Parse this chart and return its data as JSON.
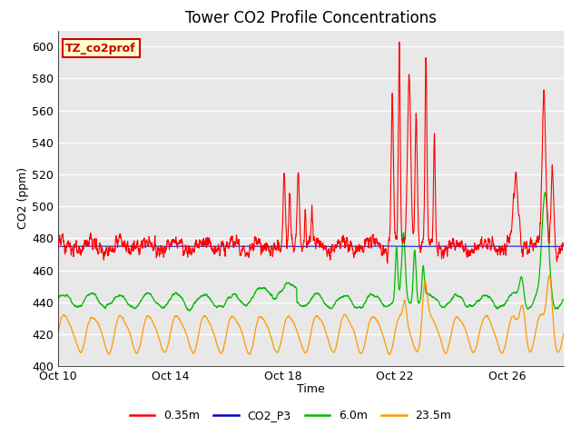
{
  "title": "Tower CO2 Profile Concentrations",
  "xlabel": "Time",
  "ylabel": "CO2 (ppm)",
  "ylim": [
    400,
    610
  ],
  "yticks": [
    400,
    420,
    440,
    460,
    480,
    500,
    520,
    540,
    560,
    580,
    600
  ],
  "xlim_days": [
    0,
    18
  ],
  "xtick_labels": [
    "Oct 10",
    "Oct 14",
    "Oct 18",
    "Oct 22",
    "Oct 26"
  ],
  "xtick_positions": [
    0,
    4,
    8,
    12,
    16
  ],
  "plot_bg_color": "#e8e8e8",
  "grid_color": "white",
  "series": {
    "red": {
      "label": "0.35m",
      "color": "#ff0000"
    },
    "blue": {
      "label": "CO2_P3",
      "color": "#0000cc"
    },
    "green": {
      "label": "6.0m",
      "color": "#00bb00"
    },
    "orange": {
      "label": "23.5m",
      "color": "#ff9900"
    }
  },
  "label_box": {
    "text": "TZ_co2prof",
    "text_color": "#cc0000",
    "bg_color": "#ffffcc",
    "border_color": "#cc0000"
  },
  "legend_fontsize": 9,
  "title_fontsize": 12
}
